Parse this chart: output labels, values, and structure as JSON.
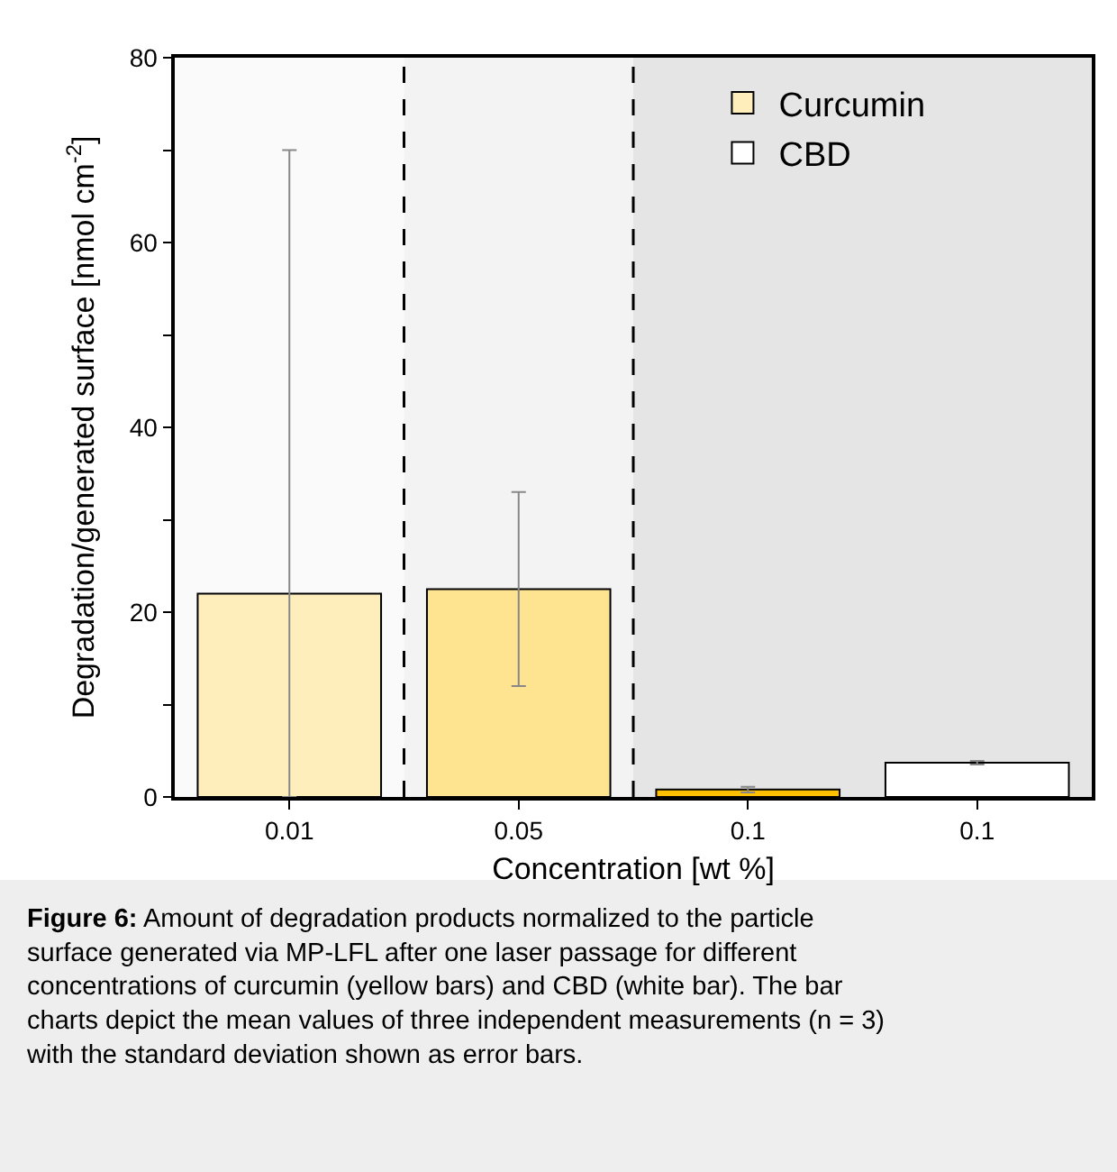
{
  "chart_data": {
    "type": "bar",
    "categories": [
      "0.01",
      "0.05",
      "0.1",
      "0.1"
    ],
    "xlabel": "Concentration [wt %]",
    "ylabel": "Degradation/generated surface [nmol cm$^{-2}$]",
    "series": [
      {
        "name": "Curcumin",
        "color": "#fee391",
        "colors": [
          "#fdeebb",
          "#fee391",
          "#fec000",
          null
        ],
        "values": [
          22,
          22.5,
          0.8,
          null
        ],
        "errors": [
          [
            0,
            70
          ],
          [
            12,
            33
          ],
          [
            0.5,
            1.1
          ],
          null
        ]
      },
      {
        "name": "CBD",
        "color": "#ffffff",
        "values": [
          null,
          null,
          null,
          3.7
        ],
        "errors": [
          null,
          null,
          null,
          [
            3.5,
            3.9
          ]
        ]
      }
    ],
    "ylim": [
      0,
      80
    ],
    "yticks": [
      0,
      {
        "value": 10,
        "label": null
      },
      20,
      {
        "value": 30,
        "label": null
      },
      40,
      {
        "value": 50,
        "label": null
      },
      60,
      {
        "value": 70,
        "label": null
      },
      80
    ],
    "legend": "top right",
    "grid": false,
    "annotations": [
      "Figure 6: Amount of degradation products normalized to the particle surface generated via MP-LFL after one laser passage for different concentrations of curcumin (yellow bars) and CBD (white bar). The bar charts depict the mean values of three independent measurements (n = 3) with the standard deviation shown as error bars."
    ]
  }
}
